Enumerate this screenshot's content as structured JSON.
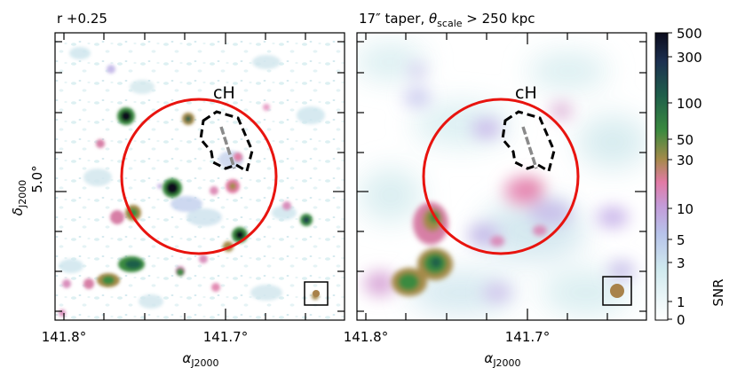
{
  "figure": {
    "panels": [
      {
        "title": "r +0.25",
        "xlabel": "α",
        "xlabel_sub": "J2000",
        "xticks": [
          "141.8°",
          "141.7°"
        ],
        "region_label": "cH"
      },
      {
        "title_parts": [
          "17″ taper, ",
          "θ",
          "scale",
          " > 250 kpc"
        ],
        "xlabel": "α",
        "xlabel_sub": "J2000",
        "xticks": [
          "141.8°",
          "141.7°"
        ],
        "region_label": "cH"
      }
    ],
    "ylabel": "δ",
    "ylabel_sub": "J2000",
    "yticks": [
      "5.0°"
    ],
    "colorbar": {
      "label": "SNR",
      "ticks": [
        "500",
        "300",
        "100",
        "50",
        "30",
        "10",
        "5",
        "3",
        "1",
        "0"
      ],
      "colormap": [
        "#f7ffff",
        "#cfe9ee",
        "#b2b9e6",
        "#d58fcf",
        "#e27aa5",
        "#a58a4a",
        "#3b8a3f",
        "#1f5f4a",
        "#1c3050",
        "#0b0b1c"
      ]
    },
    "colors": {
      "circle": "#e8140f",
      "region": "#000000",
      "filament": "#8a8a8a",
      "beam": "#a8824a"
    }
  }
}
